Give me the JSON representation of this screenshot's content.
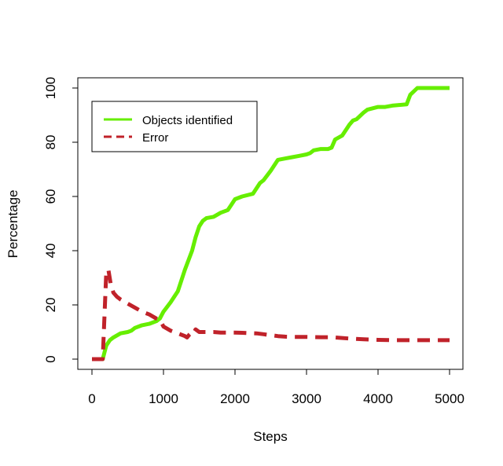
{
  "chart_data": {
    "type": "line",
    "title": "",
    "xlabel": "Steps",
    "ylabel": "Percentage",
    "xlim": [
      0,
      5000
    ],
    "ylim": [
      0,
      100
    ],
    "x_ticks": [
      0,
      1000,
      2000,
      3000,
      4000,
      5000
    ],
    "y_ticks": [
      0,
      20,
      40,
      60,
      80,
      100
    ],
    "x_tick_labels": [
      "0",
      "1000",
      "2000",
      "3000",
      "4000",
      "5000"
    ],
    "y_tick_labels": [
      "0",
      "20",
      "40",
      "60",
      "80",
      "100"
    ],
    "grid": false,
    "legend_position": "top-left",
    "series": [
      {
        "name": "Objects identified",
        "color": "#66ee00",
        "dash": "solid",
        "x": [
          0,
          150,
          200,
          250,
          300,
          400,
          500,
          550,
          600,
          700,
          800,
          900,
          950,
          1000,
          1100,
          1200,
          1300,
          1400,
          1450,
          1500,
          1550,
          1600,
          1700,
          1800,
          1900,
          1950,
          2000,
          2100,
          2250,
          2350,
          2400,
          2500,
          2600,
          2700,
          2800,
          2900,
          3000,
          3050,
          3100,
          3200,
          3300,
          3350,
          3400,
          3500,
          3600,
          3650,
          3700,
          3800,
          3850,
          4000,
          4100,
          4200,
          4400,
          4450,
          4550,
          4600,
          4700,
          4800,
          5000
        ],
        "y": [
          0,
          0,
          5,
          7,
          8,
          9.5,
          10,
          10.5,
          11.5,
          12.5,
          13,
          14,
          15,
          17.5,
          21,
          25,
          33,
          40,
          45,
          49,
          51,
          52,
          52.5,
          54,
          55,
          57,
          59,
          60,
          61,
          65,
          66,
          69.5,
          73.5,
          74,
          74.5,
          75,
          75.5,
          76,
          77,
          77.5,
          77.5,
          78,
          81,
          82.5,
          86.5,
          88,
          88.5,
          91,
          92,
          93,
          93,
          93.5,
          94,
          97.5,
          100,
          100,
          100,
          100,
          100
        ]
      },
      {
        "name": "Error",
        "color": "#c0222a",
        "dash": "dashed",
        "x": [
          0,
          150,
          200,
          230,
          260,
          300,
          350,
          400,
          500,
          600,
          700,
          800,
          900,
          950,
          1000,
          1100,
          1200,
          1300,
          1330,
          1360,
          1400,
          1420,
          1450,
          1500,
          1600,
          1700,
          1800,
          1900,
          2000,
          2100,
          2200,
          2300,
          2400,
          2500,
          2600,
          2700,
          2800,
          3000,
          3200,
          3300,
          3400,
          3600,
          3800,
          4000,
          4200,
          4400,
          4600,
          4800,
          5000
        ],
        "y": [
          0,
          0,
          32,
          33,
          28,
          24.5,
          23,
          22,
          20.5,
          19,
          17.5,
          16.5,
          15,
          14.5,
          12,
          10.5,
          9.5,
          8.5,
          8,
          9,
          10,
          9.5,
          11,
          10,
          10,
          10,
          9.8,
          9.8,
          9.8,
          9.7,
          9.6,
          9.5,
          9.2,
          8.8,
          8.5,
          8.3,
          8.2,
          8.2,
          8.1,
          8.1,
          8,
          7.6,
          7.3,
          7.1,
          7,
          7,
          7,
          7,
          7
        ]
      }
    ]
  }
}
